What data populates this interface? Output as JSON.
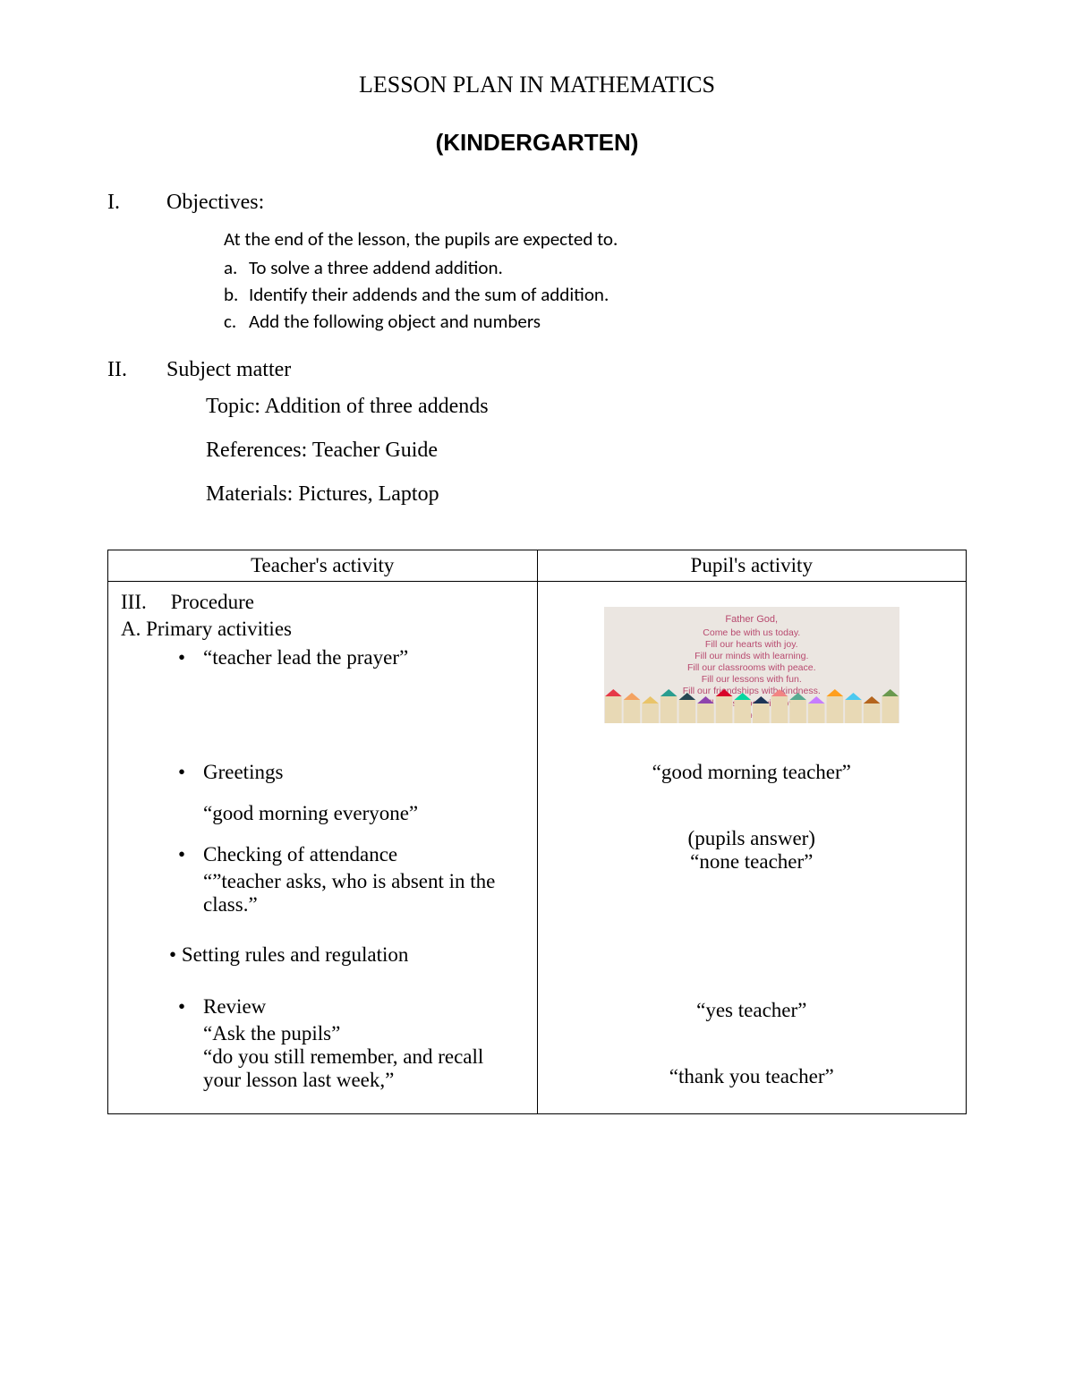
{
  "title": "LESSON PLAN IN MATHEMATICS",
  "subtitle": "(KINDERGARTEN)",
  "sections": {
    "objectives": {
      "roman": "I.",
      "label": "Objectives:",
      "intro": "At the end of the lesson, the pupils are expected to.",
      "items": [
        {
          "letter": "a.",
          "text": "To solve a three addend addition."
        },
        {
          "letter": "b.",
          "text": "Identify their addends and the sum of addition."
        },
        {
          "letter": "c.",
          "text": "Add the following object and numbers"
        }
      ]
    },
    "subject": {
      "roman": "II.",
      "label": "Subject matter",
      "topic": "Topic: Addition of three addends",
      "references": "References: Teacher Guide",
      "materials": "Materials: Pictures, Laptop"
    }
  },
  "table": {
    "header_left": "Teacher's activity",
    "header_right": "Pupil's activity",
    "procedure": {
      "roman": "III.",
      "label": "Procedure"
    },
    "primary_label": "A.  Primary activities",
    "teacher": {
      "prayer": "“teacher lead the prayer”",
      "greetings_label": "Greetings",
      "greetings_quote": "“good morning everyone”",
      "attendance_label": "Checking of attendance",
      "attendance_quote": "“”teacher asks, who is absent in the class.”",
      "rules": "Setting rules and regulation",
      "review_label": "Review",
      "review_q1": "“Ask the pupils”",
      "review_q2": "“do you still remember, and recall your lesson last week,”"
    },
    "pupil": {
      "greeting": "“good morning teacher”",
      "answer_label": "(pupils answer)",
      "none": "“none teacher”",
      "yes": "“yes teacher”",
      "thank": "“thank you teacher”"
    },
    "prayer_card": {
      "title": "Father God,",
      "lines": [
        "Come be with us today.",
        "Fill our hearts with joy.",
        "Fill our minds with learning.",
        "Fill our classrooms with peace.",
        "Fill our lessons with fun.",
        "Fill our friendships with kindness.",
        "Fill our school with love.",
        "Amen."
      ],
      "pencil_colors": [
        "#e63946",
        "#f4a261",
        "#e9c46a",
        "#2a9d8f",
        "#264653",
        "#8e44ad",
        "#d90429",
        "#06d6a0",
        "#1d3557",
        "#f28482",
        "#56ab91",
        "#c77dff",
        "#ff9f1c",
        "#4cc9f0",
        "#b5651d",
        "#6a994e"
      ]
    }
  },
  "colors": {
    "text": "#000000",
    "bg": "#ffffff",
    "border": "#000000",
    "prayer_text": "#b84a6f",
    "prayer_bg": "#ebe6e1"
  }
}
